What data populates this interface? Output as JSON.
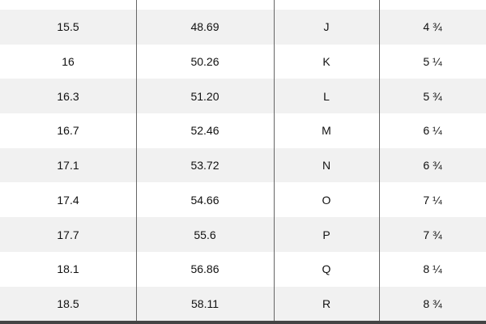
{
  "table": {
    "rows": [
      [
        "15.5",
        "48.69",
        "J",
        "4 ¾"
      ],
      [
        "16",
        "50.26",
        "K",
        "5 ¼"
      ],
      [
        "16.3",
        "51.20",
        "L",
        "5 ¾"
      ],
      [
        "16.7",
        "52.46",
        "M",
        "6 ¼"
      ],
      [
        "17.1",
        "53.72",
        "N",
        "6 ¾"
      ],
      [
        "17.4",
        "54.66",
        "O",
        "7 ¼"
      ],
      [
        "17.7",
        "55.6",
        "P",
        "7 ¾"
      ],
      [
        "18.1",
        "56.86",
        "Q",
        "8 ¼"
      ],
      [
        "18.5",
        "58.11",
        "R",
        "8 ¾"
      ]
    ]
  }
}
